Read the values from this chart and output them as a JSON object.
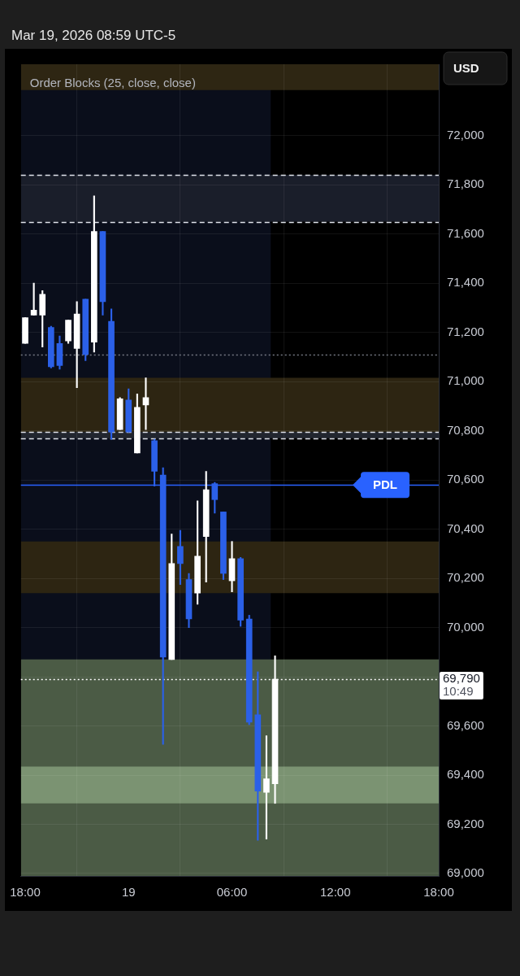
{
  "chart_data": {
    "type": "candlestick",
    "title": "Mar 19, 2026 08:59 UTC-5",
    "ylabel": "USD",
    "x": [
      "2026-03-18T18:00",
      "2026-03-18T18:30",
      "2026-03-18T19:00",
      "2026-03-18T19:30",
      "2026-03-18T20:00",
      "2026-03-18T20:30",
      "2026-03-18T21:00",
      "2026-03-18T21:30",
      "2026-03-18T22:00",
      "2026-03-18T22:30",
      "2026-03-18T23:00",
      "2026-03-18T23:30",
      "2026-03-19T00:00",
      "2026-03-19T00:30",
      "2026-03-19T01:00",
      "2026-03-19T01:30",
      "2026-03-19T02:00",
      "2026-03-19T02:30",
      "2026-03-19T03:00",
      "2026-03-19T03:30",
      "2026-03-19T04:00",
      "2026-03-19T04:30",
      "2026-03-19T05:00",
      "2026-03-19T05:30",
      "2026-03-19T06:00",
      "2026-03-19T06:30",
      "2026-03-19T07:00",
      "2026-03-19T07:30",
      "2026-03-19T08:00",
      "2026-03-19T08:30"
    ],
    "ohlc": [
      [
        71155,
        71260,
        71155,
        71260
      ],
      [
        71270,
        71400,
        71270,
        71290
      ],
      [
        71270,
        71370,
        71140,
        71355
      ],
      [
        71220,
        71225,
        71055,
        71060
      ],
      [
        71155,
        71185,
        71050,
        71065
      ],
      [
        71165,
        71250,
        71155,
        71250
      ],
      [
        71135,
        71325,
        70975,
        71275
      ],
      [
        71335,
        71335,
        71085,
        71110
      ],
      [
        71160,
        71755,
        71120,
        71610
      ],
      [
        71610,
        71610,
        71270,
        71325
      ],
      [
        71245,
        71295,
        70765,
        70795
      ],
      [
        70805,
        70935,
        70805,
        70930
      ],
      [
        70925,
        70970,
        70795,
        70795
      ],
      [
        70710,
        70950,
        70710,
        70895
      ],
      [
        70905,
        71015,
        70805,
        70935
      ],
      [
        70760,
        70765,
        70575,
        70635
      ],
      [
        70620,
        70650,
        69525,
        69880
      ],
      [
        69870,
        70380,
        69870,
        70260
      ],
      [
        70330,
        70395,
        70175,
        70260
      ],
      [
        70195,
        70220,
        70000,
        70035
      ],
      [
        70140,
        70515,
        70095,
        70290
      ],
      [
        70370,
        70635,
        70185,
        70560
      ],
      [
        70585,
        70590,
        70465,
        70520
      ],
      [
        70470,
        70470,
        70195,
        70220
      ],
      [
        70190,
        70350,
        70145,
        70280
      ],
      [
        70280,
        70285,
        70005,
        70030
      ],
      [
        70035,
        70050,
        69605,
        69615
      ],
      [
        69645,
        69820,
        69135,
        69335
      ],
      [
        69330,
        69560,
        69140,
        69385
      ],
      [
        69365,
        69885,
        69285,
        69790
      ]
    ],
    "colors": [
      "#ffffff",
      "#ffffff",
      "#ffffff",
      "#2b60e8",
      "#2b60e8",
      "#ffffff",
      "#ffffff",
      "#2b60e8",
      "#ffffff",
      "#2b60e8",
      "#2b60e8",
      "#ffffff",
      "#2b60e8",
      "#ffffff",
      "#ffffff",
      "#2b60e8",
      "#2b60e8",
      "#ffffff",
      "#2b60e8",
      "#2b60e8",
      "#ffffff",
      "#ffffff",
      "#2b60e8",
      "#2b60e8",
      "#ffffff",
      "#2b60e8",
      "#2b60e8",
      "#2b60e8",
      "#ffffff",
      "#ffffff"
    ],
    "xlim": [
      "2026-03-18T17:45",
      "2026-03-19T18:00"
    ],
    "xticks": [
      {
        "value": "2026-03-18T18:00",
        "label": "18:00"
      },
      {
        "value": "2026-03-19T00:00",
        "label": "19"
      },
      {
        "value": "2026-03-19T06:00",
        "label": "06:00"
      },
      {
        "value": "2026-03-19T12:00",
        "label": "12:00"
      },
      {
        "value": "2026-03-19T18:00",
        "label": "18:00"
      }
    ],
    "ylim": [
      68990,
      72290
    ],
    "yticks": [
      {
        "value": 69000,
        "label": "69,000"
      },
      {
        "value": 69200,
        "label": "69,200"
      },
      {
        "value": 69400,
        "label": "69,400"
      },
      {
        "value": 69600,
        "label": "69,600"
      },
      {
        "value": 69800,
        "label": null
      },
      {
        "value": 70000,
        "label": "70,000"
      },
      {
        "value": 70200,
        "label": "70,200"
      },
      {
        "value": 70400,
        "label": "70,400"
      },
      {
        "value": 70600,
        "label": "70,600"
      },
      {
        "value": 70800,
        "label": "70,800"
      },
      {
        "value": 71000,
        "label": "71,000"
      },
      {
        "value": 71200,
        "label": "71,200"
      },
      {
        "value": 71400,
        "label": "71,400"
      },
      {
        "value": 71600,
        "label": "71,600"
      },
      {
        "value": 71800,
        "label": "71,800"
      },
      {
        "value": 72000,
        "label": "72,000"
      }
    ],
    "grid": true,
    "bands": [
      {
        "axis": "x",
        "from": "2026-03-18T17:45",
        "to": "2026-03-19T08:15",
        "color": "#0a0e1b"
      },
      {
        "axis": "y",
        "from": 72185,
        "to": 72290,
        "color": "#2e2613"
      },
      {
        "axis": "y",
        "from": 71650,
        "to": 71840,
        "color": "#1a1e2a"
      },
      {
        "axis": "y",
        "from": 70795,
        "to": 71015,
        "color": "#2d2512"
      },
      {
        "axis": "y",
        "from": 70770,
        "to": 70795,
        "color": "#22262f"
      },
      {
        "axis": "y",
        "from": 70140,
        "to": 70350,
        "color": "#2d2512"
      },
      {
        "axis": "y",
        "from": 68990,
        "to": 69870,
        "color": "#4b5b45"
      },
      {
        "axis": "y",
        "from": 69285,
        "to": 69435,
        "color": "#7b9372"
      }
    ],
    "ref_lines": [
      {
        "axis": "y",
        "value": 71840,
        "color": "#e0e3eb",
        "line_style": "dashed"
      },
      {
        "axis": "y",
        "value": 71650,
        "color": "#e0e3eb",
        "line_style": "dashed"
      },
      {
        "axis": "y",
        "value": 71110,
        "color": "#787b86",
        "line_style": "dotted"
      },
      {
        "axis": "y",
        "value": 70795,
        "color": "#e0e3eb",
        "line_style": "dashed"
      },
      {
        "axis": "y",
        "value": 70770,
        "color": "#e0e3eb",
        "line_style": "dashed"
      },
      {
        "axis": "y",
        "value": 70580,
        "label": "PDL",
        "color": "#2962ff"
      },
      {
        "axis": "y",
        "value": 69790,
        "label": "69,790\n10:49",
        "color": "#ffffff",
        "line_style": "dotted"
      }
    ],
    "annotations": [
      "Order Blocks (25, close, close)"
    ]
  }
}
